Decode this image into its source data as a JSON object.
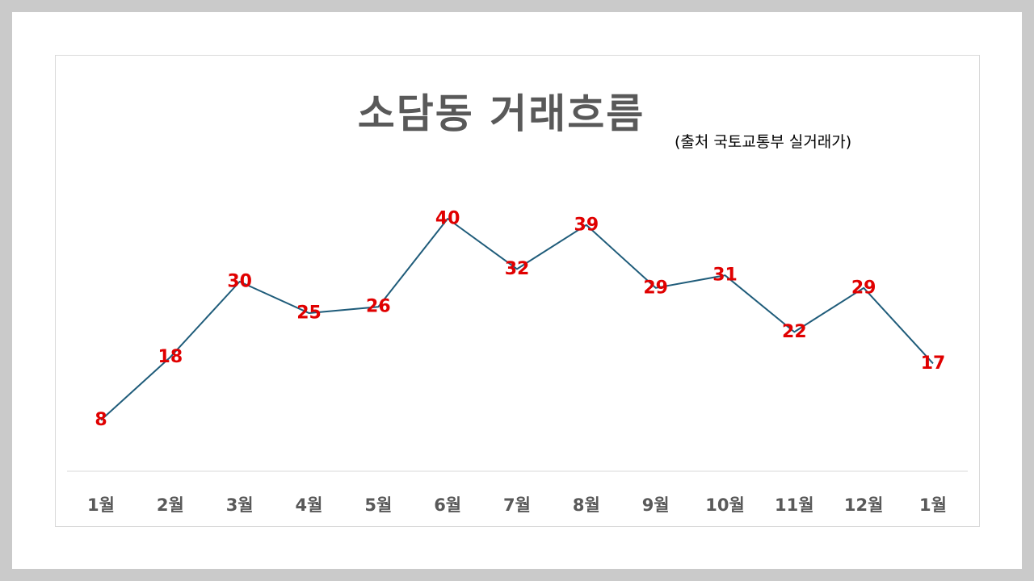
{
  "chart_data": {
    "type": "line",
    "title": "소담동 거래흐름",
    "subtitle": "(출처 국토교통부 실거래가)",
    "categories": [
      "1월",
      "2월",
      "3월",
      "4월",
      "5월",
      "6월",
      "7월",
      "8월",
      "9월",
      "10월",
      "11월",
      "12월",
      "1월"
    ],
    "values": [
      8,
      18,
      30,
      25,
      26,
      40,
      32,
      39,
      29,
      31,
      22,
      29,
      17
    ],
    "xlabel": "",
    "ylabel": "",
    "ylim": [
      0,
      45
    ],
    "grid": false,
    "data_labels": true,
    "colors": {
      "line": "#1f5c7a",
      "data_label": "#e00000",
      "tick_label": "#595959",
      "baseline": "#d9d9d9"
    }
  }
}
